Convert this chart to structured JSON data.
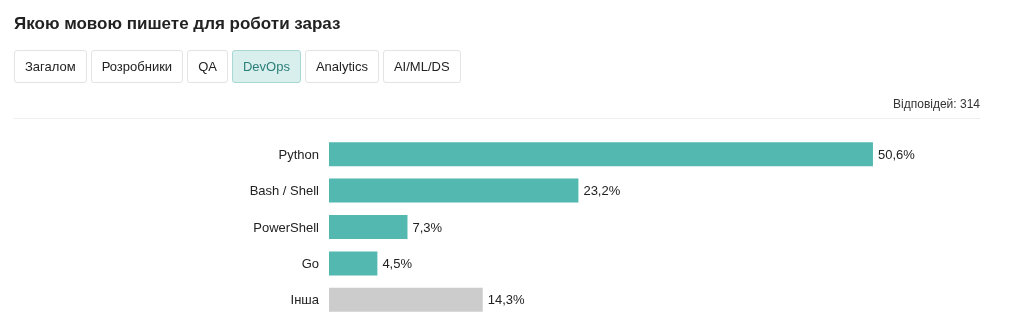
{
  "chart_data": {
    "type": "bar",
    "orientation": "horizontal",
    "title": "Якою мовою пишете для роботи зараз",
    "annotations": [
      "Загалом",
      "Розробники",
      "QA",
      "DevOps",
      "Analytics",
      "AI/ML/DS",
      "Відповідей: 314"
    ],
    "categories": [
      "Python",
      "Bash / Shell",
      "PowerShell",
      "Go",
      "Інша"
    ],
    "values": [
      50.6,
      23.2,
      7.3,
      4.5,
      14.3
    ],
    "colors": [
      "#52b8b0",
      "#52b8b0",
      "#52b8b0",
      "#52b8b0",
      "#cccccc"
    ],
    "value_labels": [
      "50,6%",
      "23,2%",
      "7,3%",
      "4,5%",
      "14,3%"
    ]
  }
}
